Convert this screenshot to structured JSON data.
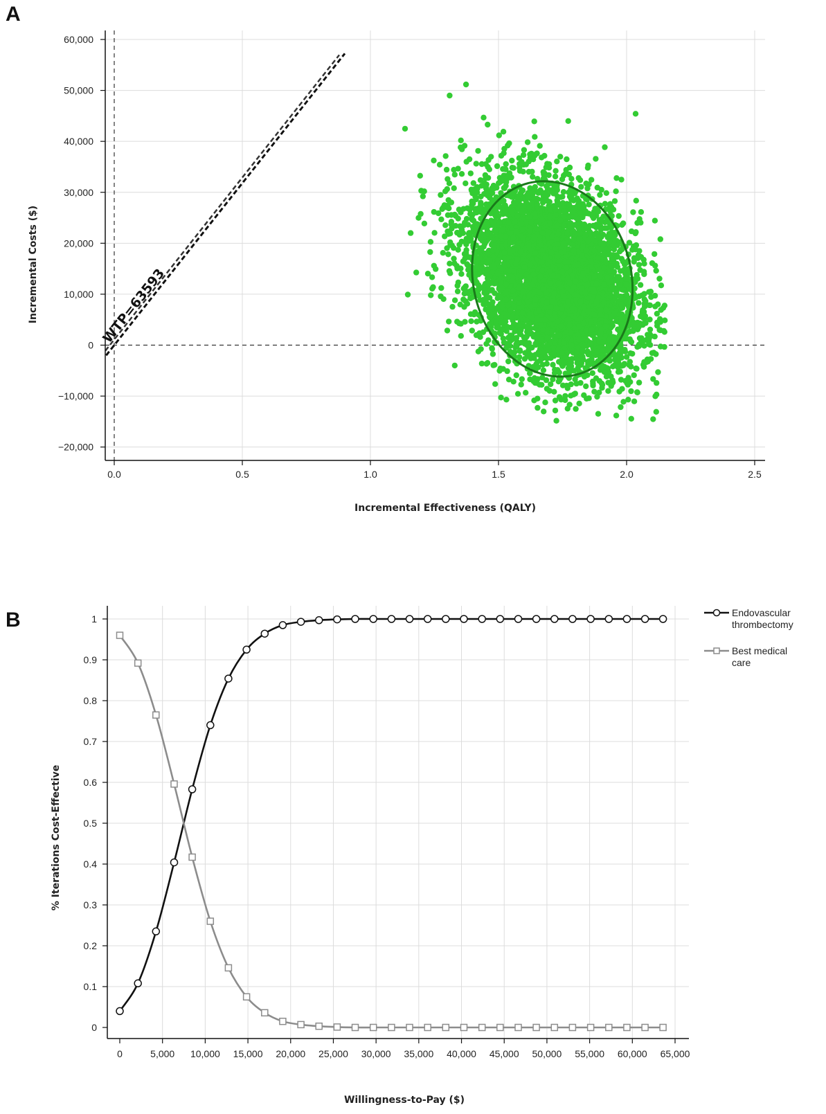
{
  "chart_data": [
    {
      "panel": "A",
      "type": "scatter",
      "xlabel": "Incremental Effectiveness (QALY)",
      "ylabel": "Incremental Costs ($)",
      "xlim": [
        0.0,
        2.5
      ],
      "ylim": [
        -20000,
        60000
      ],
      "x_ticks": [
        "0.0",
        "0.5",
        "1.0",
        "1.5",
        "2.0",
        "2.5"
      ],
      "y_ticks": [
        "60,000",
        "50,000",
        "40,000",
        "30,000",
        "20,000",
        "10,000",
        "0",
        "−10,000",
        "−20,000"
      ],
      "wtp_label": "WTP=63593",
      "wtp_slope": 63593,
      "point_cloud": {
        "center_x": 1.71,
        "center_y": 13000,
        "sd_x": 0.17,
        "sd_y": 9500,
        "correlation": -0.33,
        "x_range": [
          1.04,
          2.15
        ],
        "y_range": [
          -15500,
          53500
        ],
        "color": "#33cc33"
      },
      "ellipse": {
        "center_x": 1.71,
        "center_y": 13000,
        "x_extent": [
          1.37,
          2.04
        ],
        "y_extent": [
          -6000,
          32000
        ],
        "color": "#1a7a1a"
      },
      "grid": true
    },
    {
      "panel": "B",
      "type": "line",
      "xlabel": "Willingness-to-Pay ($)",
      "ylabel": "% Iterations Cost-Effective",
      "xlim": [
        0,
        65000
      ],
      "ylim": [
        0,
        1
      ],
      "x_ticks": [
        "0",
        "5,000",
        "10,000",
        "15,000",
        "20,000",
        "25,000",
        "30,000",
        "35,000",
        "40,000",
        "45,000",
        "50,000",
        "55,000",
        "60,000",
        "65,000"
      ],
      "y_ticks": [
        "1",
        "0.9",
        "0.8",
        "0.7",
        "0.6",
        "0.5",
        "0.4",
        "0.3",
        "0.2",
        "0.1",
        "0"
      ],
      "x": [
        0,
        2120,
        4240,
        6360,
        8480,
        10600,
        12720,
        14840,
        16960,
        19080,
        21200,
        23320,
        25440,
        27560,
        29680,
        31800,
        33920,
        36040,
        38160,
        40280,
        42400,
        44520,
        46640,
        48760,
        50880,
        53000,
        55120,
        57240,
        59360,
        61480,
        63593
      ],
      "series": [
        {
          "name": "Endovascular thrombectomy",
          "values": [
            0.04,
            0.108,
            0.235,
            0.404,
            0.583,
            0.74,
            0.854,
            0.925,
            0.964,
            0.985,
            0.993,
            0.997,
            0.999,
            1,
            1,
            1,
            1,
            1,
            1,
            1,
            1,
            1,
            1,
            1,
            1,
            1,
            1,
            1,
            1,
            1,
            1
          ],
          "color": "#111111",
          "marker": "circle"
        },
        {
          "name": "Best medical care",
          "values": [
            0.96,
            0.892,
            0.765,
            0.596,
            0.417,
            0.26,
            0.146,
            0.075,
            0.036,
            0.015,
            0.007,
            0.003,
            0.001,
            0,
            0,
            0,
            0,
            0,
            0,
            0,
            0,
            0,
            0,
            0,
            0,
            0,
            0,
            0,
            0,
            0,
            0
          ],
          "color": "#8c8c8c",
          "marker": "square"
        }
      ],
      "legend_lines": [
        [
          "Endovascular",
          "thrombectomy"
        ],
        [
          "Best medical",
          "care"
        ]
      ],
      "legend_position": "right",
      "grid": true
    }
  ]
}
